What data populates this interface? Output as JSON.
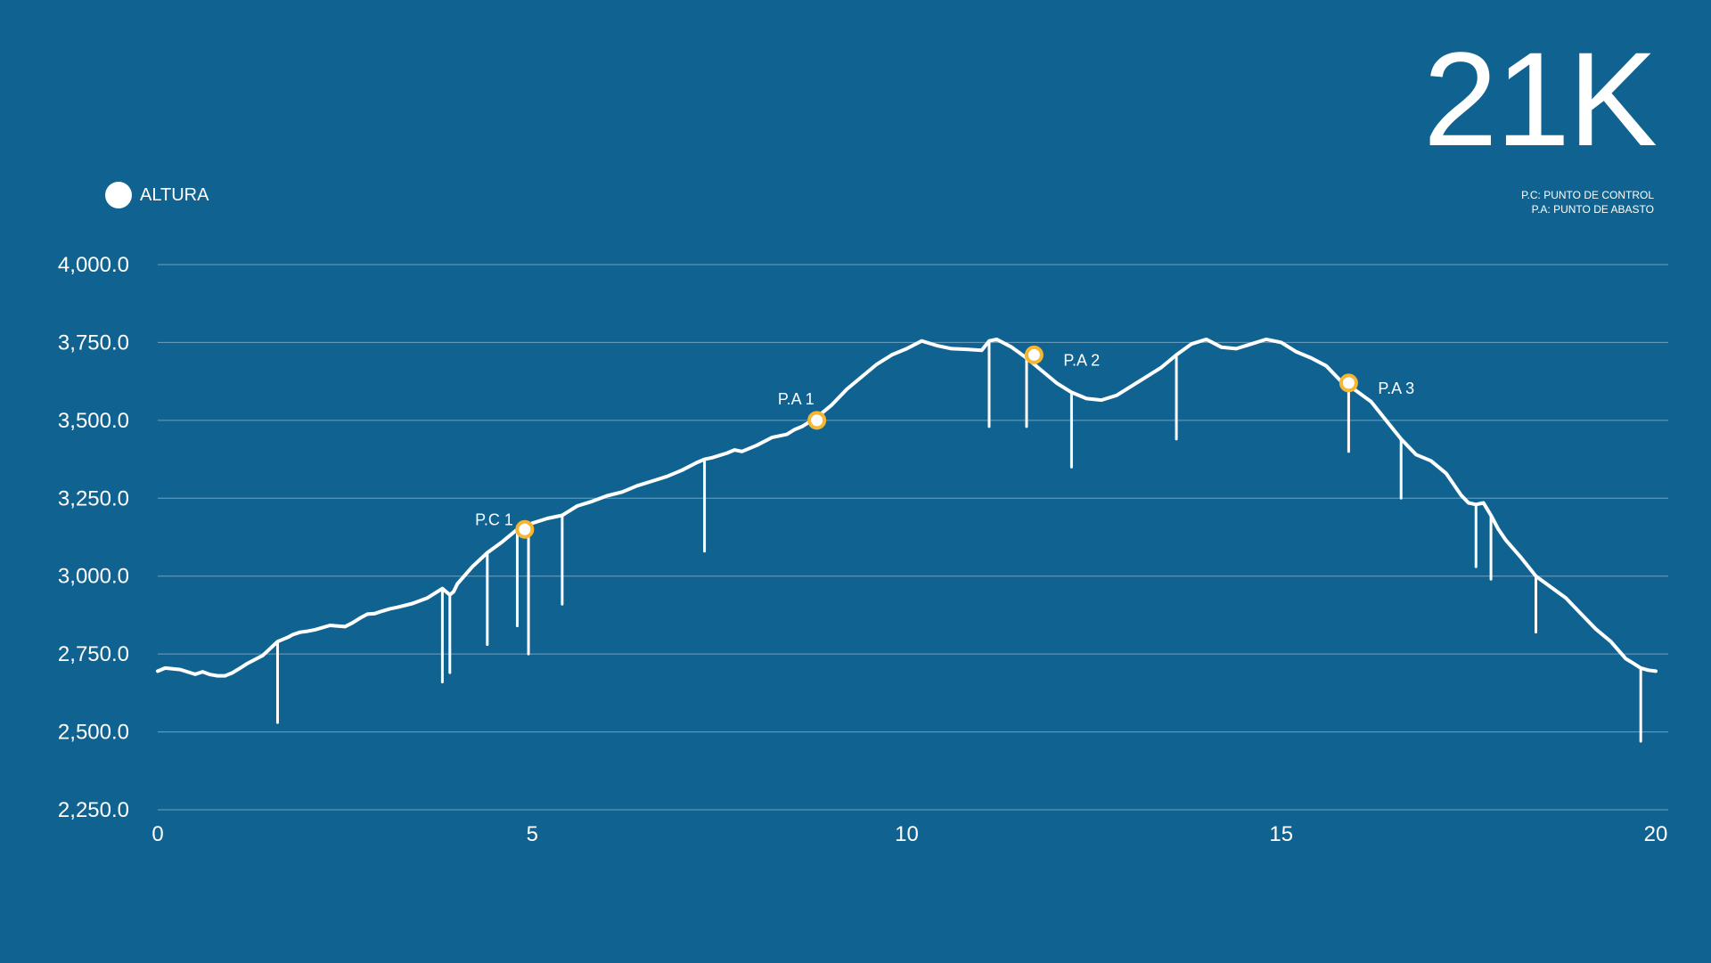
{
  "header": {
    "title": "21K",
    "notes": [
      "P.C: PUNTO DE CONTROL",
      "P.A: PUNTO DE ABASTO"
    ]
  },
  "colors": {
    "background": "#106390",
    "line": "#ffffff",
    "marker": "#f5b731",
    "grid": "#6f9fbd"
  },
  "chart_data": {
    "type": "line",
    "xlim": [
      0,
      20
    ],
    "ylim": [
      2250,
      4000
    ],
    "x_ticks": [
      {
        "value": 0,
        "label": "0"
      },
      {
        "value": 5,
        "label": "5"
      },
      {
        "value": 10,
        "label": "10"
      },
      {
        "value": 15,
        "label": "15"
      },
      {
        "value": 20,
        "label": "20"
      }
    ],
    "y_ticks": [
      {
        "value": 4000,
        "label": "4,000.0"
      },
      {
        "value": 3750,
        "label": "3,750.0"
      },
      {
        "value": 3500,
        "label": "3,500.0"
      },
      {
        "value": 3250,
        "label": "3,250.0"
      },
      {
        "value": 3000,
        "label": "3,000.0"
      },
      {
        "value": 2750,
        "label": "2,750.0"
      },
      {
        "value": 2500,
        "label": "2,500.0"
      },
      {
        "value": 2250,
        "label": "2,250.0"
      }
    ],
    "grid": true,
    "legend_position": "top-left",
    "series": [
      {
        "name": "ALTURA",
        "x": [
          0,
          0.1,
          0.3,
          0.5,
          0.6,
          0.7,
          0.8,
          0.9,
          1.0,
          1.1,
          1.2,
          1.4,
          1.6,
          1.7,
          1.75,
          1.8,
          1.9,
          2.0,
          2.1,
          2.3,
          2.5,
          2.6,
          2.7,
          2.8,
          2.9,
          3.0,
          3.1,
          3.2,
          3.4,
          3.6,
          3.8,
          3.9,
          3.95,
          4.0,
          4.2,
          4.4,
          4.6,
          4.8,
          5.0,
          5.2,
          5.4,
          5.6,
          5.8,
          6.0,
          6.2,
          6.4,
          6.6,
          6.8,
          7.0,
          7.2,
          7.3,
          7.4,
          7.6,
          7.7,
          7.8,
          8.0,
          8.2,
          8.4,
          8.5,
          8.6,
          8.8,
          9.0,
          9.2,
          9.4,
          9.6,
          9.8,
          10.0,
          10.2,
          10.4,
          10.6,
          10.8,
          11.0,
          11.1,
          11.2,
          11.4,
          11.6,
          11.8,
          12.0,
          12.2,
          12.4,
          12.6,
          12.8,
          13.0,
          13.2,
          13.4,
          13.6,
          13.8,
          14.0,
          14.2,
          14.4,
          14.6,
          14.8,
          15.0,
          15.2,
          15.4,
          15.6,
          15.8,
          16.0,
          16.2,
          16.4,
          16.6,
          16.8,
          17.0,
          17.2,
          17.4,
          17.5,
          17.6,
          17.7,
          17.8,
          17.9,
          18.0,
          18.2,
          18.4,
          18.6,
          18.8,
          19.0,
          19.2,
          19.4,
          19.6,
          19.7,
          19.8,
          19.9,
          20.0
        ],
        "values": [
          2695,
          2705,
          2700,
          2685,
          2693,
          2684,
          2680,
          2680,
          2690,
          2705,
          2720,
          2745,
          2790,
          2800,
          2805,
          2812,
          2820,
          2823,
          2828,
          2842,
          2838,
          2850,
          2865,
          2878,
          2880,
          2888,
          2895,
          2900,
          2912,
          2930,
          2960,
          2940,
          2950,
          2975,
          3030,
          3075,
          3110,
          3150,
          3170,
          3185,
          3195,
          3225,
          3240,
          3258,
          3270,
          3290,
          3305,
          3320,
          3340,
          3365,
          3375,
          3380,
          3395,
          3405,
          3400,
          3420,
          3445,
          3455,
          3470,
          3480,
          3510,
          3550,
          3600,
          3640,
          3680,
          3710,
          3730,
          3755,
          3740,
          3730,
          3728,
          3725,
          3755,
          3760,
          3735,
          3700,
          3660,
          3620,
          3590,
          3570,
          3565,
          3580,
          3610,
          3640,
          3670,
          3710,
          3745,
          3760,
          3735,
          3730,
          3745,
          3760,
          3750,
          3720,
          3700,
          3675,
          3625,
          3595,
          3560,
          3500,
          3440,
          3390,
          3370,
          3330,
          3260,
          3235,
          3230,
          3235,
          3195,
          3150,
          3115,
          3060,
          3000,
          2965,
          2930,
          2880,
          2830,
          2790,
          2735,
          2720,
          2705,
          2698,
          2695
        ],
        "dropouts": [
          {
            "x": 1.6,
            "value": 2530
          },
          {
            "x": 3.8,
            "value": 2660
          },
          {
            "x": 3.9,
            "value": 2690
          },
          {
            "x": 4.4,
            "value": 2780
          },
          {
            "x": 4.8,
            "value": 2840
          },
          {
            "x": 4.95,
            "value": 2750
          },
          {
            "x": 5.4,
            "value": 2910
          },
          {
            "x": 7.3,
            "value": 3080
          },
          {
            "x": 11.1,
            "value": 3480
          },
          {
            "x": 11.6,
            "value": 3480
          },
          {
            "x": 12.2,
            "value": 3350
          },
          {
            "x": 13.6,
            "value": 3440
          },
          {
            "x": 15.9,
            "value": 3400
          },
          {
            "x": 16.6,
            "value": 3250
          },
          {
            "x": 17.6,
            "value": 3030
          },
          {
            "x": 17.8,
            "value": 2990
          },
          {
            "x": 18.4,
            "value": 2820
          },
          {
            "x": 19.8,
            "value": 2470
          }
        ]
      }
    ],
    "annotations": [
      {
        "label": "P.C 1",
        "x": 4.9,
        "y": 3150
      },
      {
        "label": "P.A 1",
        "x": 8.8,
        "y": 3500
      },
      {
        "label": "P.A 2",
        "x": 11.7,
        "y": 3710
      },
      {
        "label": "P.A 3",
        "x": 15.9,
        "y": 3620
      }
    ]
  }
}
